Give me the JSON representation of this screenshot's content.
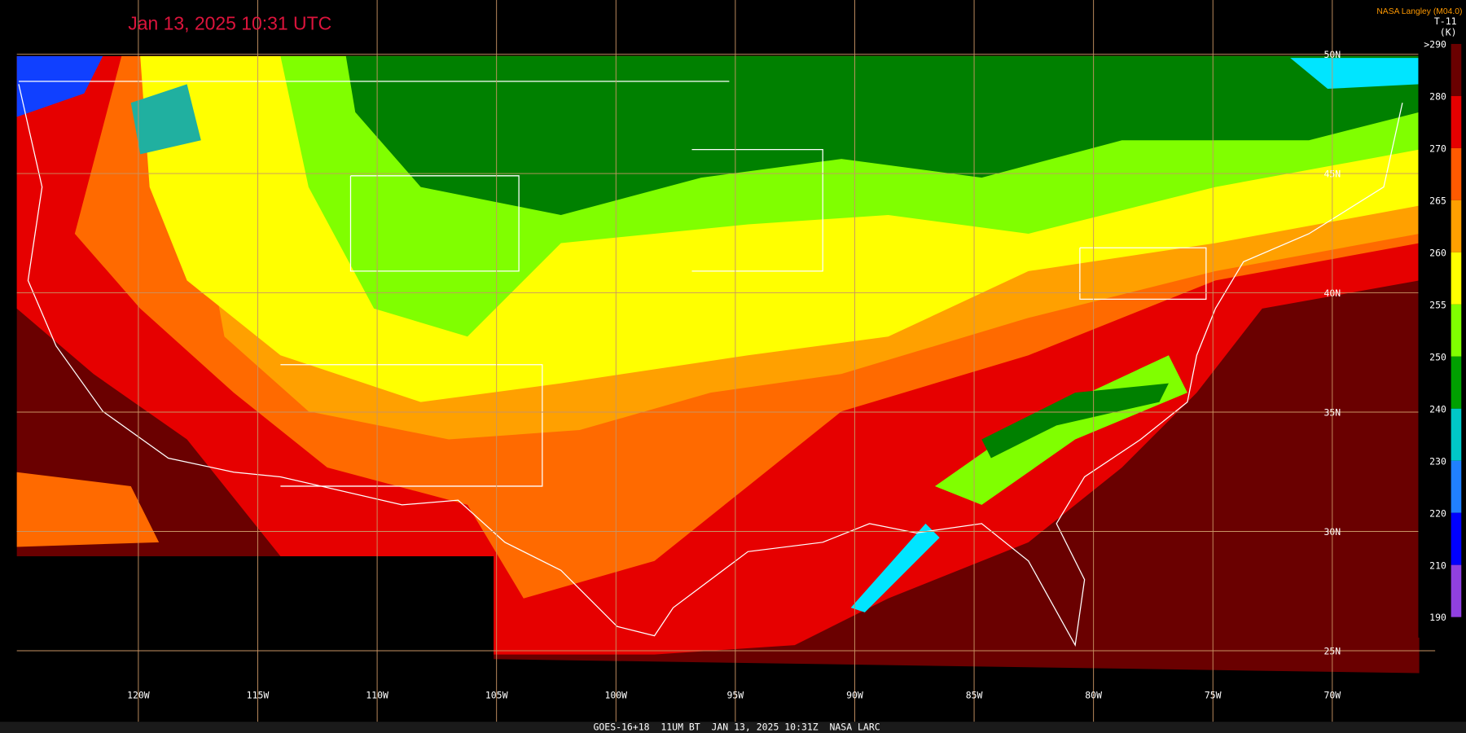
{
  "header": {
    "title": "Jan 13, 2025 10:31 UTC",
    "credit": "NASA Langley (M04.0)"
  },
  "colorbar": {
    "title": "T-11",
    "unit": "(K)",
    "ticks": [
      {
        "value": 290,
        "label": ">290"
      },
      280,
      270,
      265,
      260,
      255,
      250,
      240,
      230,
      220,
      210,
      190
    ]
  },
  "map": {
    "lat_labels": [
      "50N",
      "45N",
      "40N",
      "35N",
      "30N",
      "25N"
    ],
    "lon_labels": [
      "120W",
      "115W",
      "110W",
      "105W",
      "100W",
      "95W",
      "90W",
      "85W",
      "80W",
      "75W",
      "70W"
    ]
  },
  "footer": {
    "text": "GOES-16+18  11UM BT  JAN 13, 2025 10:31Z  NASA LARC"
  }
}
